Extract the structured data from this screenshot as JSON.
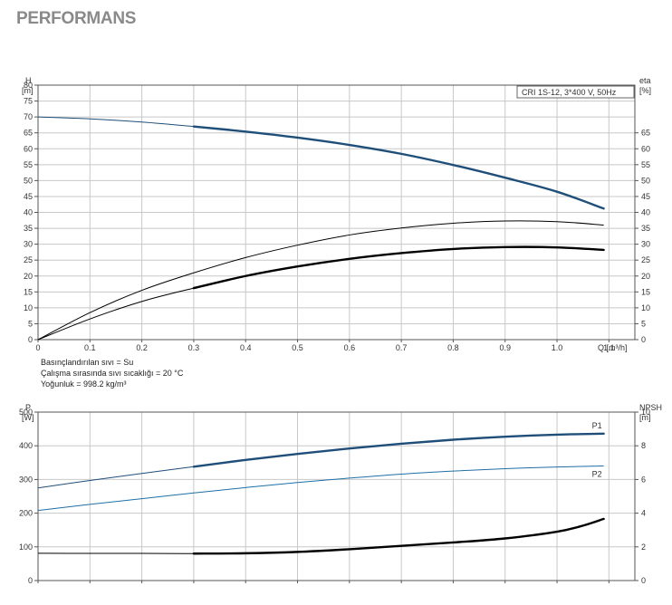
{
  "title": "PERFORMANS",
  "chart_data": [
    {
      "type": "line",
      "model_label": "CRI 1S-12, 3*400 V, 50Hz",
      "xlabel": "Q [m³/h]",
      "ylabel_left": [
        "H",
        "[m]"
      ],
      "ylabel_right": [
        "eta",
        "[%]"
      ],
      "xlim": [
        0,
        1.15
      ],
      "ylim_left": [
        0,
        80
      ],
      "ylim_right": [
        0,
        80
      ],
      "grid": true,
      "x_ticks": [
        "0",
        "0.1",
        "0.2",
        "0.3",
        "0.4",
        "0.5",
        "0.6",
        "0.7",
        "0.8",
        "0.9",
        "1.0",
        "1.1"
      ],
      "y_ticks_left": [
        "0",
        "5",
        "10",
        "15",
        "20",
        "25",
        "30",
        "35",
        "40",
        "45",
        "50",
        "55",
        "60",
        "65",
        "70",
        "75",
        "80"
      ],
      "y_ticks_right": [
        "0",
        "5",
        "10",
        "15",
        "20",
        "25",
        "30",
        "35",
        "40",
        "45",
        "50",
        "55",
        "60",
        "65"
      ],
      "series": [
        {
          "kind": "head",
          "axis": "left",
          "color": "#1f4e79",
          "x": [
            0,
            0.1,
            0.2,
            0.3,
            0.4,
            0.5,
            0.6,
            0.7,
            0.8,
            0.9,
            1.0,
            1.09
          ],
          "y": [
            70,
            69.4,
            68.4,
            67.0,
            65.4,
            63.5,
            61.2,
            58.4,
            54.9,
            50.9,
            46.5,
            41.2
          ],
          "bold_from": 0.3
        },
        {
          "kind": "eta-thin",
          "axis": "right",
          "color": "#000000",
          "x": [
            0,
            0.1,
            0.2,
            0.3,
            0.4,
            0.5,
            0.6,
            0.7,
            0.8,
            0.9,
            1.0,
            1.09
          ],
          "y": [
            0,
            8.5,
            15.5,
            21.0,
            25.8,
            29.7,
            32.9,
            35.1,
            36.6,
            37.3,
            37.1,
            36.0
          ],
          "bold_from": null
        },
        {
          "kind": "eta",
          "axis": "right",
          "color": "#000000",
          "x": [
            0,
            0.1,
            0.2,
            0.3,
            0.4,
            0.5,
            0.6,
            0.7,
            0.8,
            0.9,
            1.0,
            1.09
          ],
          "y": [
            0,
            6.5,
            12.0,
            16.2,
            20.0,
            23.0,
            25.4,
            27.2,
            28.5,
            29.1,
            29.0,
            28.2
          ],
          "bold_from": 0.3
        }
      ],
      "notes": [
        "Basınçlandırılan sıvı = Su",
        "Çalışma sırasında sıvı sıcaklığı = 20 °C",
        "Yoğunluk = 998.2 kg/m³"
      ]
    },
    {
      "type": "line",
      "ylabel_left": [
        "P",
        "[W]"
      ],
      "ylabel_right": [
        "NPSH",
        "[m]"
      ],
      "xlim": [
        0,
        1.15
      ],
      "ylim_left": [
        0,
        500
      ],
      "ylim_right": [
        0,
        10
      ],
      "grid": true,
      "y_ticks_left": [
        "0",
        "100",
        "200",
        "300",
        "400",
        "500"
      ],
      "y_ticks_right": [
        "0",
        "2",
        "4",
        "6",
        "8",
        "10"
      ],
      "series": [
        {
          "name": "P1",
          "axis": "left",
          "color": "#1f4e79",
          "x": [
            0,
            0.1,
            0.2,
            0.3,
            0.4,
            0.5,
            0.6,
            0.7,
            0.8,
            0.9,
            1.0,
            1.09
          ],
          "y": [
            275,
            297,
            318,
            338,
            358,
            376,
            392,
            406,
            418,
            427,
            433,
            436
          ],
          "bold_from": 0.3
        },
        {
          "name": "P2",
          "axis": "left",
          "color": "#1f6fa6",
          "x": [
            0,
            0.1,
            0.2,
            0.3,
            0.4,
            0.5,
            0.6,
            0.7,
            0.8,
            0.9,
            1.0,
            1.09
          ],
          "y": [
            208,
            226,
            243,
            260,
            276,
            291,
            304,
            316,
            325,
            332,
            337,
            340
          ],
          "bold_from": null
        },
        {
          "kind": "npsh",
          "axis": "right",
          "color": "#000000",
          "x": [
            0,
            0.1,
            0.2,
            0.3,
            0.4,
            0.5,
            0.6,
            0.7,
            0.8,
            0.9,
            1.0,
            1.05,
            1.09
          ],
          "y": [
            1.62,
            1.61,
            1.61,
            1.6,
            1.62,
            1.7,
            1.86,
            2.06,
            2.26,
            2.5,
            2.9,
            3.26,
            3.66
          ],
          "bold_from": 0.3
        }
      ]
    }
  ]
}
